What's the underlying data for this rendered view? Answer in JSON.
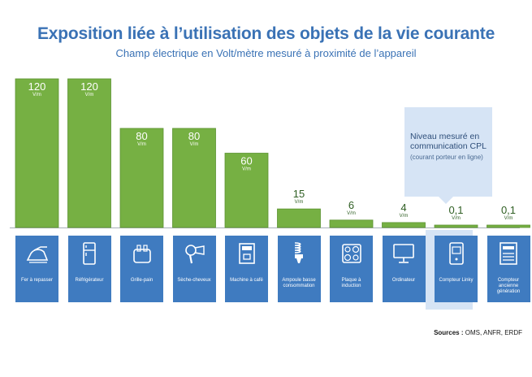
{
  "title": "Exposition liée à l’utilisation des objets de la vie courante",
  "subtitle": "Champ électrique en Volt/mètre mesuré à proximité de l’appareil",
  "callout": {
    "main": "Niveau mesuré en communication CPL",
    "sub": "(courant porteur en ligne)"
  },
  "source_label": "Sources :",
  "source_value": "OMS, ANFR, ERDF",
  "colors": {
    "bar": "#76b043",
    "bar_outline": "#5d9433",
    "tile": "#3f7bc0",
    "highlight": "#d6e4f5",
    "title": "#3a72b5"
  },
  "chart_data": {
    "type": "bar",
    "unit": "V/m",
    "categories": [
      "Fer à repasser",
      "Réfrigérateur",
      "Grille-pain",
      "Sèche-cheveux",
      "Machine à café",
      "Ampoule basse consommation",
      "Plaque à induction",
      "Ordinateur",
      "Compteur Linky",
      "Compteur ancienne génération"
    ],
    "values": [
      120,
      120,
      80,
      80,
      60,
      15,
      6,
      4,
      0.1,
      0.1
    ],
    "value_labels": [
      "120",
      "120",
      "80",
      "80",
      "60",
      "15",
      "6",
      "4",
      "0,1",
      "0,1"
    ],
    "icons": [
      "iron-icon",
      "fridge-icon",
      "toaster-icon",
      "hair-dryer-icon",
      "coffee-machine-icon",
      "cfl-bulb-icon",
      "induction-hob-icon",
      "computer-icon",
      "linky-meter-icon",
      "old-meter-icon"
    ],
    "highlighted_index": 8,
    "ylim": [
      0,
      120
    ]
  }
}
